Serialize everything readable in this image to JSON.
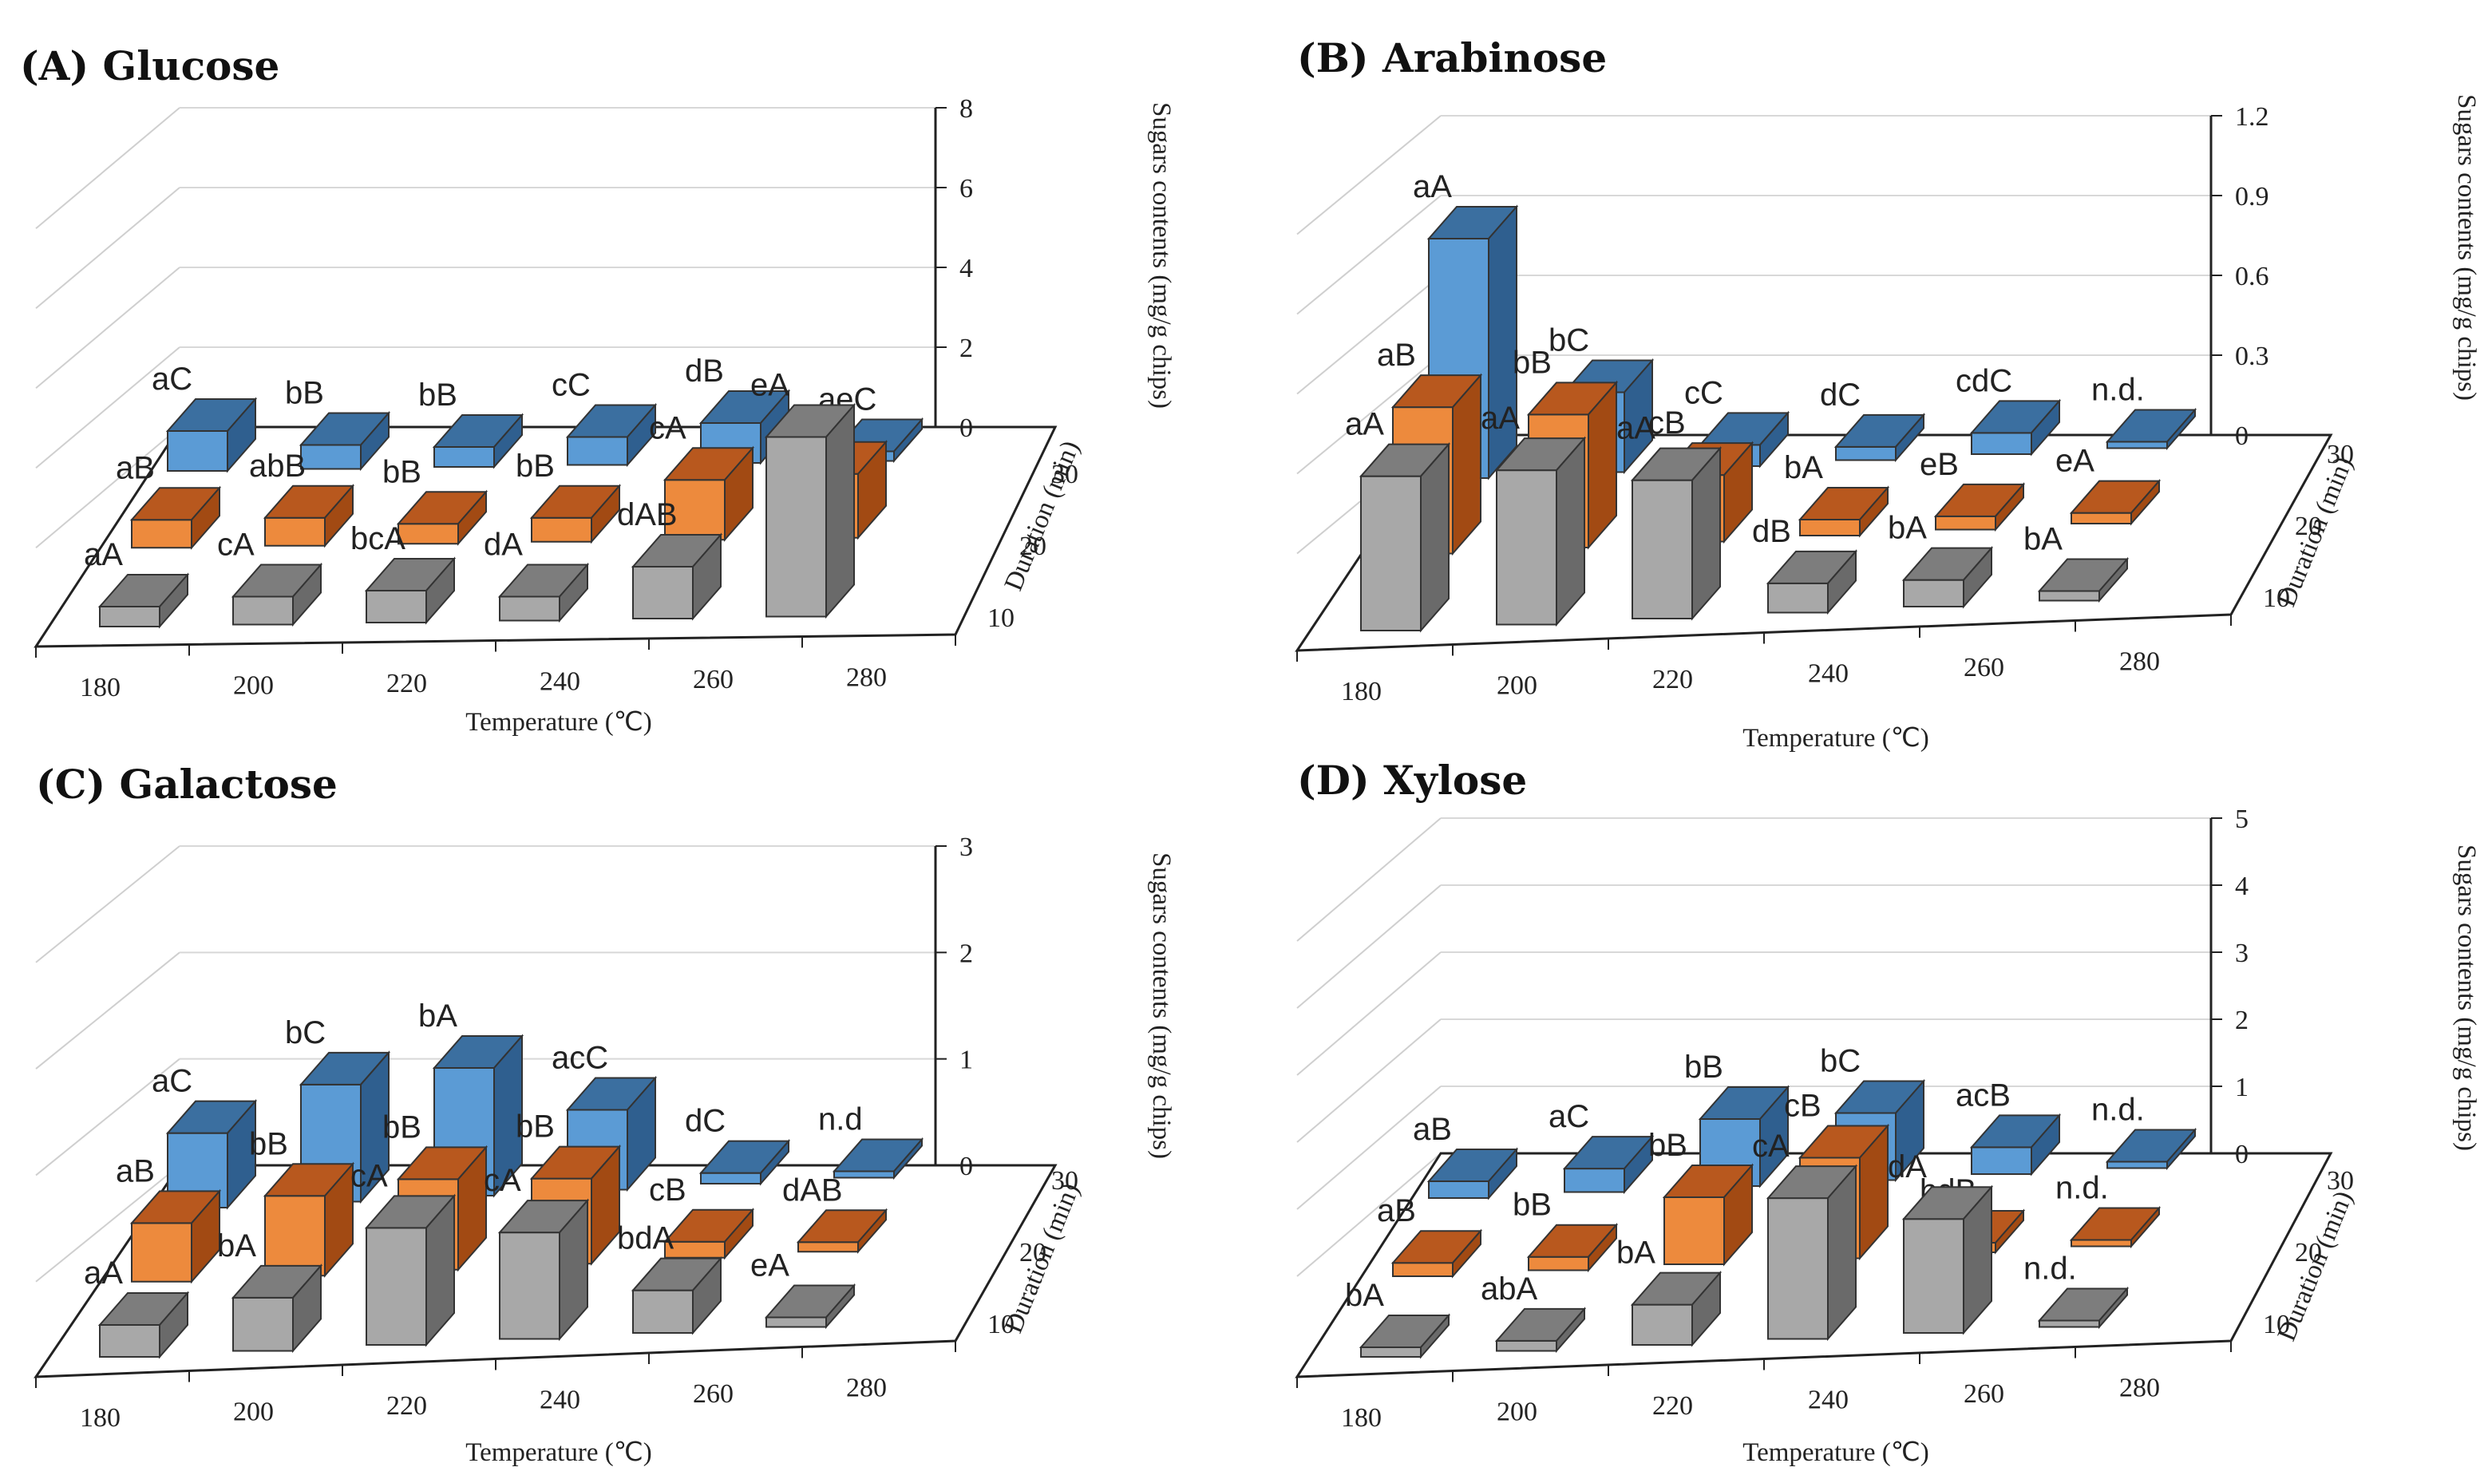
{
  "colors": {
    "d10": {
      "front": "#a8a8a8",
      "top": "#7d7d7d",
      "side": "#6a6a6a"
    },
    "d20": {
      "front": "#ed8a3d",
      "top": "#b8581e",
      "side": "#a24a13"
    },
    "d30": {
      "front": "#5b9bd5",
      "top": "#3b6fa0",
      "side": "#2f5f8f"
    }
  },
  "chart_data": [
    {
      "type": "bar",
      "title": "(A) Glucose",
      "categories": [
        "180",
        "200",
        "220",
        "240",
        "260",
        "280"
      ],
      "xlabel": "Temperature (℃)",
      "ylabel": "Sugars contents (mg/g chips)",
      "zlabel": "Duration (min)",
      "durations": [
        "10",
        "20",
        "30"
      ],
      "ylim": [
        0,
        8
      ],
      "yticks": [
        "0",
        "2",
        "4",
        "6",
        "8"
      ],
      "series": [
        {
          "name": "10",
          "values": [
            0.5,
            0.7,
            0.8,
            0.6,
            1.3,
            4.5
          ],
          "labels": [
            "aA",
            "cA",
            "bcA",
            "dA",
            "dAB",
            "eA"
          ]
        },
        {
          "name": "20",
          "values": [
            0.7,
            0.7,
            0.5,
            0.6,
            1.5,
            1.6
          ],
          "labels": [
            "aB",
            "abB",
            "bB",
            "bB",
            "cA",
            "dB"
          ]
        },
        {
          "name": "30",
          "values": [
            1.0,
            0.6,
            0.5,
            0.7,
            1.0,
            0.2
          ],
          "labels": [
            "aC",
            "bB",
            "bB",
            "cC",
            "dB",
            "aeC"
          ]
        }
      ]
    },
    {
      "type": "bar",
      "title": "(B) Arabinose",
      "categories": [
        "180",
        "200",
        "220",
        "240",
        "260",
        "280"
      ],
      "xlabel": "Temperature (℃)",
      "ylabel": "Sugars contents (mg/g chips)",
      "zlabel": "Duration (min)",
      "durations": [
        "10",
        "20",
        "30"
      ],
      "ylim": [
        0,
        1.2
      ],
      "yticks": [
        "0",
        "0.3",
        "0.6",
        "0.9",
        "1.2"
      ],
      "series": [
        {
          "name": "10",
          "values": [
            0.58,
            0.58,
            0.52,
            0.11,
            0.1,
            0.03
          ],
          "labels": [
            "aA",
            "aA",
            "aA",
            "dB",
            "bA",
            "bA"
          ]
        },
        {
          "name": "20",
          "values": [
            0.55,
            0.5,
            0.25,
            0.06,
            0.05,
            0.04
          ],
          "labels": [
            "aB",
            "bB",
            "cB",
            "bA",
            "eB",
            "eA"
          ]
        },
        {
          "name": "30",
          "values": [
            0.9,
            0.3,
            0.08,
            0.05,
            0.08,
            0
          ],
          "labels": [
            "aA",
            "bC",
            "cC",
            "dC",
            "cdC",
            "n.d."
          ]
        }
      ]
    },
    {
      "type": "bar",
      "title": "(C) Galactose",
      "categories": [
        "180",
        "200",
        "220",
        "240",
        "260",
        "280"
      ],
      "xlabel": "Temperature (℃)",
      "ylabel": "Sugars contents (mg/g chips)",
      "zlabel": "Duration (min)",
      "durations": [
        "10",
        "20",
        "30"
      ],
      "ylim": [
        0,
        3
      ],
      "yticks": [
        "0",
        "1",
        "2",
        "3"
      ],
      "series": [
        {
          "name": "10",
          "values": [
            0.3,
            0.5,
            1.1,
            1.0,
            0.4,
            0.02
          ],
          "labels": [
            "aA",
            "bA",
            "cA",
            "cA",
            "bdA",
            "eA"
          ]
        },
        {
          "name": "20",
          "values": [
            0.55,
            0.75,
            0.85,
            0.8,
            0.15,
            0.02
          ],
          "labels": [
            "aB",
            "bB",
            "bB",
            "bB",
            "cB",
            "dAB"
          ]
        },
        {
          "name": "30",
          "values": [
            0.7,
            1.1,
            1.2,
            0.75,
            0.1,
            0
          ],
          "labels": [
            "aC",
            "bC",
            "bA",
            "acC",
            "dC",
            "n.d"
          ]
        }
      ]
    },
    {
      "type": "bar",
      "title": "(D) Xylose",
      "categories": [
        "180",
        "200",
        "220",
        "240",
        "260",
        "280"
      ],
      "xlabel": "Temperature (℃)",
      "ylabel": "Sugars contents (mg/g chips)",
      "zlabel": "Duration (min)",
      "durations": [
        "10",
        "20",
        "30"
      ],
      "ylim": [
        0,
        5
      ],
      "yticks": [
        "0",
        "1",
        "2",
        "3",
        "4",
        "5"
      ],
      "series": [
        {
          "name": "10",
          "values": [
            0.1,
            0.15,
            0.6,
            2.1,
            1.7,
            0
          ],
          "labels": [
            "bA",
            "abA",
            "bA",
            "cA",
            "dA",
            "n.d."
          ]
        },
        {
          "name": "20",
          "values": [
            0.2,
            0.2,
            1.0,
            1.5,
            0.1,
            0
          ],
          "labels": [
            "aB",
            "bB",
            "bB",
            "cB",
            "bdB",
            "n.d."
          ]
        },
        {
          "name": "30",
          "values": [
            0.25,
            0.35,
            1.0,
            1.0,
            0.4,
            0
          ],
          "labels": [
            "aB",
            "aC",
            "bB",
            "bC",
            "acB",
            "n.d."
          ]
        }
      ]
    }
  ]
}
